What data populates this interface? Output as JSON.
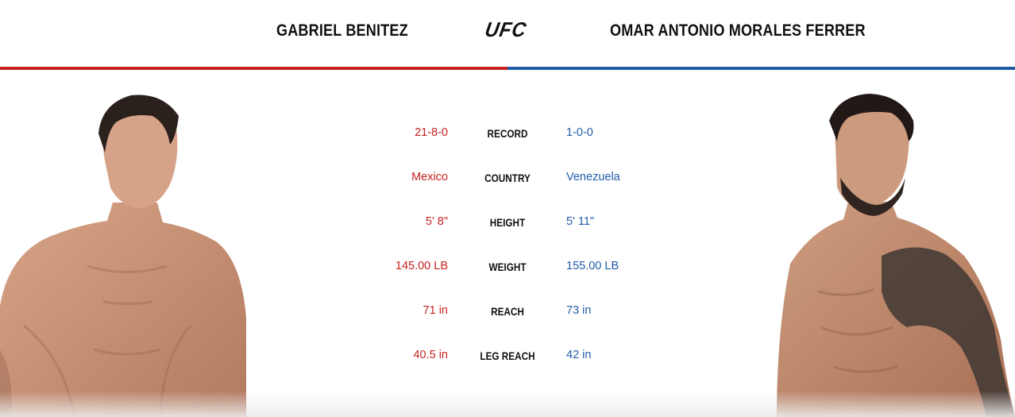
{
  "header": {
    "red_fighter": "GABRIEL BENITEZ",
    "blue_fighter": "OMAR ANTONIO MORALES FERRER",
    "logo_text": "UFC"
  },
  "colors": {
    "red_corner": "#c6221f",
    "blue_corner": "#215ca8",
    "label": "#111111"
  },
  "stats": [
    {
      "label": "RECORD",
      "red": "21-8-0",
      "blue": "1-0-0"
    },
    {
      "label": "COUNTRY",
      "red": "Mexico",
      "blue": "Venezuela"
    },
    {
      "label": "HEIGHT",
      "red": "5' 8\"",
      "blue": "5' 11\""
    },
    {
      "label": "WEIGHT",
      "red": "145.00 LB",
      "blue": "155.00 LB"
    },
    {
      "label": "REACH",
      "red": "71 in",
      "blue": "73 in"
    },
    {
      "label": "LEG REACH",
      "red": "40.5 in",
      "blue": "42 in"
    }
  ],
  "icons": {
    "logo": "ufc-logo",
    "red_portrait": "fighter-portrait",
    "blue_portrait": "fighter-portrait"
  }
}
